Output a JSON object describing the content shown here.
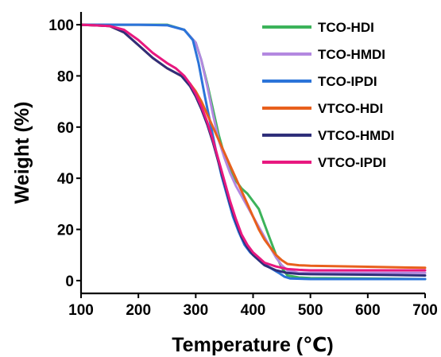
{
  "chart_data": {
    "type": "line",
    "xlabel": "Temperature (℃)",
    "ylabel": "Weight (%)",
    "xlim": [
      100,
      700
    ],
    "ylim": [
      -5,
      105
    ],
    "xticks": [
      100,
      200,
      300,
      400,
      500,
      600,
      700
    ],
    "yticks": [
      0,
      20,
      40,
      60,
      80,
      100
    ],
    "grid": false,
    "legend_position": "top-right",
    "series": [
      {
        "name": "TCO-HDI",
        "color": "#3cb35a",
        "points": [
          [
            100,
            100
          ],
          [
            150,
            100
          ],
          [
            200,
            100
          ],
          [
            250,
            100
          ],
          [
            280,
            98
          ],
          [
            300,
            93
          ],
          [
            310,
            86
          ],
          [
            320,
            77
          ],
          [
            330,
            67
          ],
          [
            340,
            57
          ],
          [
            350,
            49
          ],
          [
            360,
            43
          ],
          [
            370,
            39
          ],
          [
            380,
            36
          ],
          [
            390,
            34
          ],
          [
            400,
            31
          ],
          [
            410,
            28
          ],
          [
            420,
            22
          ],
          [
            430,
            16
          ],
          [
            440,
            10
          ],
          [
            450,
            5
          ],
          [
            460,
            2
          ],
          [
            480,
            1.2
          ],
          [
            500,
            1
          ],
          [
            600,
            0.8
          ],
          [
            700,
            0.6
          ]
        ]
      },
      {
        "name": "TCO-HMDI",
        "color": "#b388e0",
        "points": [
          [
            100,
            100
          ],
          [
            150,
            100
          ],
          [
            200,
            100
          ],
          [
            250,
            99.8
          ],
          [
            280,
            98
          ],
          [
            300,
            93
          ],
          [
            310,
            86
          ],
          [
            320,
            76
          ],
          [
            330,
            65
          ],
          [
            340,
            55
          ],
          [
            350,
            48
          ],
          [
            360,
            42
          ],
          [
            370,
            37
          ],
          [
            380,
            33
          ],
          [
            390,
            29
          ],
          [
            400,
            25
          ],
          [
            410,
            21
          ],
          [
            420,
            17
          ],
          [
            430,
            13
          ],
          [
            440,
            9
          ],
          [
            450,
            6
          ],
          [
            460,
            4
          ],
          [
            480,
            3
          ],
          [
            500,
            3
          ],
          [
            600,
            3
          ],
          [
            700,
            3
          ]
        ]
      },
      {
        "name": "TCO-IPDI",
        "color": "#2b74d9",
        "points": [
          [
            100,
            100
          ],
          [
            150,
            100
          ],
          [
            200,
            100
          ],
          [
            250,
            99.8
          ],
          [
            280,
            98
          ],
          [
            295,
            94
          ],
          [
            305,
            85
          ],
          [
            315,
            73
          ],
          [
            325,
            62
          ],
          [
            335,
            51
          ],
          [
            345,
            41
          ],
          [
            355,
            33
          ],
          [
            365,
            25
          ],
          [
            375,
            19
          ],
          [
            385,
            14
          ],
          [
            395,
            11
          ],
          [
            405,
            9
          ],
          [
            415,
            7
          ],
          [
            430,
            5
          ],
          [
            445,
            3
          ],
          [
            455,
            1.5
          ],
          [
            465,
            0.8
          ],
          [
            500,
            0.6
          ],
          [
            600,
            0.6
          ],
          [
            700,
            0.6
          ]
        ]
      },
      {
        "name": "VTCO-HDI",
        "color": "#e8601c",
        "points": [
          [
            100,
            100
          ],
          [
            150,
            99.5
          ],
          [
            175,
            97
          ],
          [
            200,
            92
          ],
          [
            225,
            87
          ],
          [
            250,
            83
          ],
          [
            275,
            80
          ],
          [
            290,
            77
          ],
          [
            300,
            74
          ],
          [
            310,
            70
          ],
          [
            320,
            65
          ],
          [
            330,
            60
          ],
          [
            340,
            55
          ],
          [
            350,
            50
          ],
          [
            360,
            45
          ],
          [
            370,
            40
          ],
          [
            380,
            35
          ],
          [
            390,
            30
          ],
          [
            400,
            25
          ],
          [
            410,
            20
          ],
          [
            420,
            16
          ],
          [
            430,
            13
          ],
          [
            440,
            10
          ],
          [
            450,
            8
          ],
          [
            460,
            6.5
          ],
          [
            480,
            6
          ],
          [
            500,
            5.8
          ],
          [
            600,
            5.4
          ],
          [
            700,
            5
          ]
        ]
      },
      {
        "name": "VTCO-HMDI",
        "color": "#2f2f7a",
        "points": [
          [
            100,
            100
          ],
          [
            150,
            99.5
          ],
          [
            175,
            97
          ],
          [
            200,
            92
          ],
          [
            225,
            87
          ],
          [
            250,
            83
          ],
          [
            275,
            80
          ],
          [
            290,
            76
          ],
          [
            300,
            72
          ],
          [
            310,
            67
          ],
          [
            320,
            61
          ],
          [
            330,
            54
          ],
          [
            340,
            46
          ],
          [
            350,
            38
          ],
          [
            360,
            30
          ],
          [
            370,
            23
          ],
          [
            380,
            17
          ],
          [
            390,
            13
          ],
          [
            400,
            10
          ],
          [
            410,
            8
          ],
          [
            420,
            6
          ],
          [
            440,
            4
          ],
          [
            460,
            3
          ],
          [
            480,
            2.6
          ],
          [
            500,
            2.5
          ],
          [
            600,
            2.3
          ],
          [
            700,
            2
          ]
        ]
      },
      {
        "name": "VTCO-IPDI",
        "color": "#e8187f",
        "points": [
          [
            100,
            100
          ],
          [
            150,
            99.5
          ],
          [
            175,
            98
          ],
          [
            200,
            94
          ],
          [
            225,
            89
          ],
          [
            250,
            85
          ],
          [
            265,
            83
          ],
          [
            280,
            80
          ],
          [
            290,
            77
          ],
          [
            300,
            73
          ],
          [
            310,
            68
          ],
          [
            320,
            62
          ],
          [
            330,
            55
          ],
          [
            340,
            47
          ],
          [
            350,
            39
          ],
          [
            360,
            31
          ],
          [
            370,
            24
          ],
          [
            380,
            18
          ],
          [
            390,
            14
          ],
          [
            400,
            11
          ],
          [
            410,
            9
          ],
          [
            420,
            7
          ],
          [
            440,
            5.5
          ],
          [
            460,
            4.5
          ],
          [
            480,
            4.2
          ],
          [
            500,
            4
          ],
          [
            600,
            4
          ],
          [
            700,
            4
          ]
        ]
      }
    ]
  }
}
